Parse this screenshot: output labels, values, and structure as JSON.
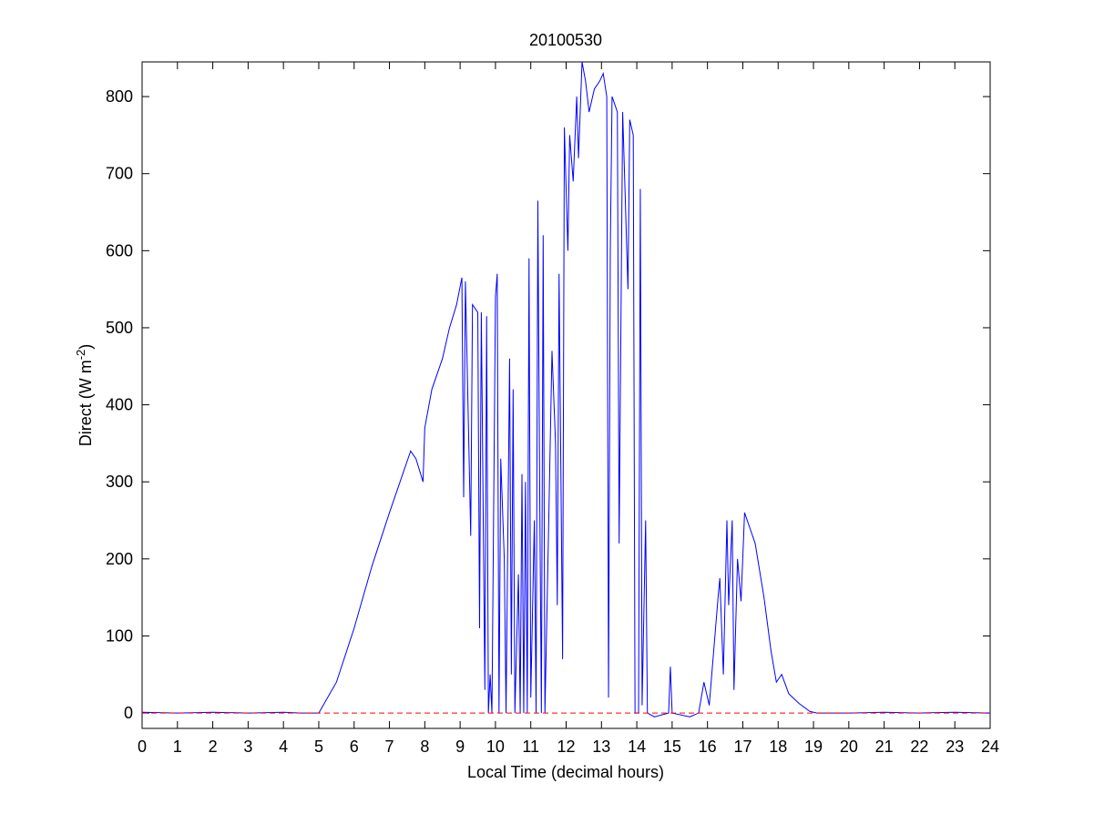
{
  "chart_data": {
    "type": "line",
    "title": "20100530",
    "xlabel": "Local Time (decimal hours)",
    "ylabel": [
      "Direct (W m",
      "-2",
      ")"
    ],
    "xlim": [
      0,
      24
    ],
    "xticks": [
      0,
      1,
      2,
      3,
      4,
      5,
      6,
      7,
      8,
      9,
      10,
      11,
      12,
      13,
      14,
      15,
      16,
      17,
      18,
      19,
      20,
      21,
      22,
      23,
      24
    ],
    "ylim": [
      -20,
      845
    ],
    "yticks": [
      0,
      100,
      200,
      300,
      400,
      500,
      600,
      700,
      800
    ],
    "series": [
      {
        "color": "#0000ff",
        "dashed": false,
        "x": [
          0,
          1,
          2,
          3,
          4,
          4.5,
          5,
          5.5,
          6,
          6.5,
          7,
          7.3,
          7.6,
          7.75,
          7.95,
          8,
          8.2,
          8.5,
          8.7,
          8.9,
          9.05,
          9.1,
          9.15,
          9.3,
          9.35,
          9.5,
          9.55,
          9.6,
          9.7,
          9.75,
          9.8,
          9.85,
          9.9,
          10,
          10.05,
          10.1,
          10.15,
          10.25,
          10.3,
          10.4,
          10.45,
          10.5,
          10.55,
          10.65,
          10.7,
          10.75,
          10.8,
          10.85,
          10.9,
          10.95,
          11,
          11.1,
          11.15,
          11.2,
          11.25,
          11.3,
          11.35,
          11.4,
          11.5,
          11.6,
          11.7,
          11.75,
          11.8,
          11.9,
          11.95,
          12.05,
          12.1,
          12.2,
          12.3,
          12.35,
          12.45,
          12.55,
          12.65,
          12.8,
          12.95,
          13.05,
          13.15,
          13.2,
          13.25,
          13.3,
          13.45,
          13.5,
          13.6,
          13.75,
          13.8,
          13.9,
          13.95,
          14.05,
          14.1,
          14.15,
          14.25,
          14.3,
          14.5,
          14.9,
          14.95,
          15,
          15.5,
          15.75,
          15.9,
          16.05,
          16.3,
          16.35,
          16.45,
          16.55,
          16.6,
          16.7,
          16.75,
          16.85,
          16.95,
          17.05,
          17.2,
          17.35,
          17.6,
          17.8,
          17.95,
          18.1,
          18.3,
          18.6,
          18.9,
          19.1,
          20,
          21,
          22,
          23,
          24
        ],
        "values": [
          1,
          0,
          1,
          0,
          1,
          0,
          0,
          40,
          110,
          190,
          260,
          300,
          340,
          330,
          300,
          370,
          420,
          460,
          500,
          530,
          565,
          280,
          560,
          230,
          530,
          520,
          110,
          520,
          30,
          515,
          0,
          50,
          0,
          540,
          570,
          0,
          330,
          200,
          0,
          460,
          50,
          420,
          0,
          180,
          0,
          310,
          0,
          300,
          0,
          590,
          20,
          250,
          0,
          665,
          300,
          0,
          620,
          0,
          230,
          470,
          350,
          140,
          570,
          70,
          760,
          600,
          750,
          690,
          800,
          720,
          845,
          820,
          780,
          810,
          820,
          830,
          800,
          20,
          600,
          800,
          780,
          220,
          780,
          550,
          770,
          750,
          0,
          0,
          680,
          10,
          250,
          0,
          -5,
          0,
          60,
          0,
          -5,
          0,
          40,
          10,
          150,
          175,
          50,
          250,
          140,
          250,
          30,
          200,
          145,
          260,
          240,
          220,
          150,
          80,
          40,
          50,
          25,
          12,
          2,
          0,
          0,
          1,
          0,
          1,
          0
        ]
      },
      {
        "color": "#ff0000",
        "dashed": true,
        "x": [
          0,
          24
        ],
        "values": [
          0,
          0
        ]
      }
    ]
  }
}
